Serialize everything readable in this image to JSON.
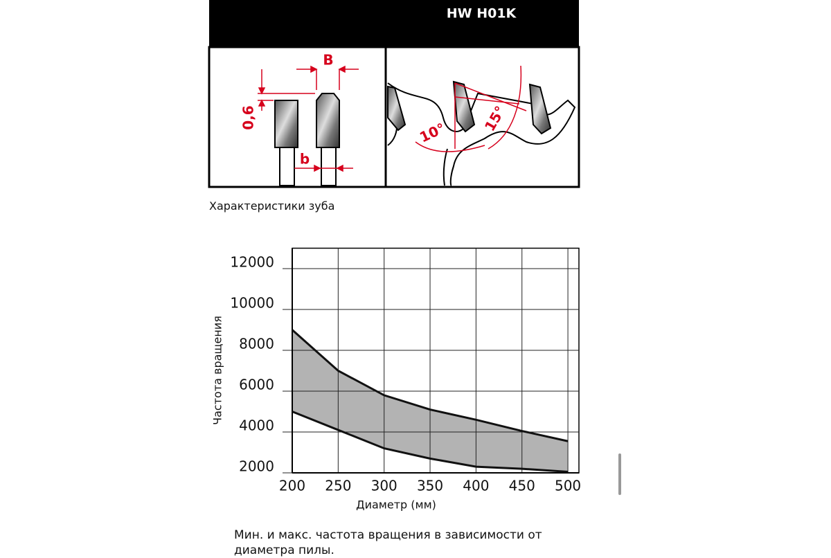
{
  "diagram": {
    "title": "HW H01K",
    "width_label": "B",
    "height_label": "0,6",
    "kerf_label": "b",
    "hook_angle": "10°",
    "clearance_angle": "15°"
  },
  "diagram_caption": "Характеристики зуба",
  "chart_data": {
    "type": "area-band",
    "x_label": "Диаметр (мм)",
    "y_label": "Частота вращения",
    "x": [
      200,
      250,
      300,
      350,
      400,
      450,
      500
    ],
    "series": [
      {
        "name": "min",
        "color": "#111111",
        "values": [
          5000,
          4100,
          3200,
          2700,
          2300,
          2200,
          2050
        ]
      },
      {
        "name": "max",
        "color": "#111111",
        "values": [
          9000,
          7000,
          5800,
          5100,
          4600,
          4050,
          3550
        ]
      }
    ],
    "fill": "#b3b3b3",
    "xlim": [
      200,
      512
    ],
    "xticks": [
      200,
      250,
      300,
      350,
      400,
      450,
      500
    ],
    "ylim": [
      2000,
      13000
    ],
    "yticks": [
      2000,
      4000,
      6000,
      8000,
      10000,
      12000
    ],
    "grid": true
  },
  "chart_caption": "Мин. и макс. частота вращения в зависимости от диаметра пилы."
}
